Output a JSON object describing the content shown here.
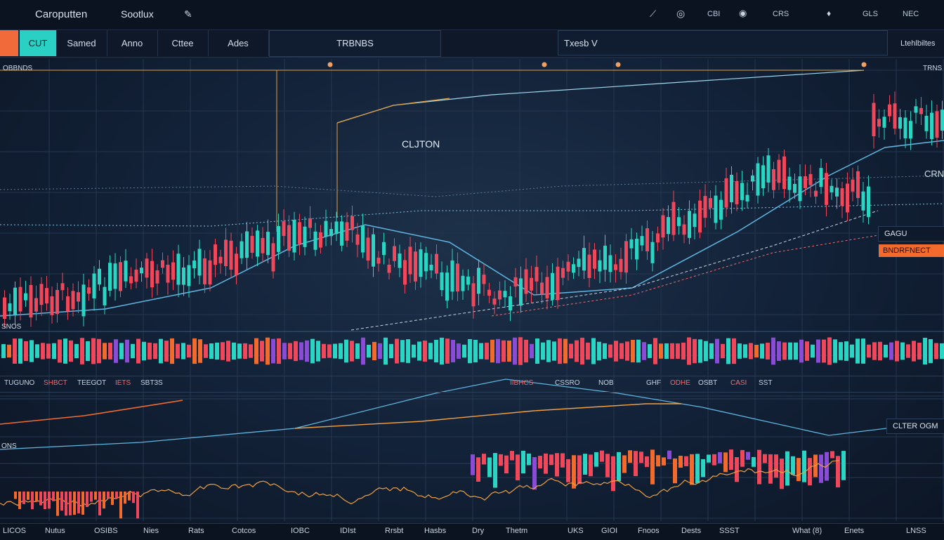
{
  "header": {
    "app_title": "Caroputten",
    "subtitle": "Sootlux",
    "icons": [
      "chart-icon",
      "globe-icon"
    ],
    "menu": [
      "CBI",
      "CRS",
      "GLS",
      "NEC"
    ]
  },
  "tabs": [
    {
      "label": "",
      "state": "active-orange"
    },
    {
      "label": "CUT",
      "state": "active-teal"
    },
    {
      "label": "Samed"
    },
    {
      "label": "Anno"
    },
    {
      "label": "Cttee"
    },
    {
      "label": "Ades"
    }
  ],
  "panels": {
    "center_title": "TRBNBS",
    "right_title": "Txesb V",
    "far_right": "Ltehlbiltes"
  },
  "chart_labels": {
    "top_left": "OBBNDS",
    "annotation": "CLJTON",
    "right_tag": "CRNI",
    "right_box1": "GAGU",
    "right_orange": "BNDRFNECT",
    "left_mid": "SNOS",
    "top_right": "TRNS",
    "lower_right_box": "CLTER OGM",
    "lower_left": "ONS"
  },
  "middle_strip": [
    "TUGUNO",
    "SHBCT",
    "TEEGOT",
    "IETS",
    "SBT3S",
    "IIBHCS",
    "CSSRO",
    "NOB",
    "GHF",
    "ODHE",
    "OSBT",
    "CASI",
    "SST"
  ],
  "bottom_bar": [
    "LICOS",
    "Nutus",
    "OSIBS",
    "Nies",
    "Rats",
    "Cotcos",
    "IOBC",
    "IDIst",
    "Rrsbt",
    "Hasbs",
    "Dry",
    "Thetm",
    "UKS",
    "GIOI",
    "Fnoos",
    "Dests",
    "SSST",
    "What (8)",
    "Enets",
    "LNSS"
  ],
  "colors": {
    "bull": "#2ad6c3",
    "bear": "#f0485a",
    "accent_orange": "#f26b2d",
    "line_blue": "#5fb6e0"
  }
}
